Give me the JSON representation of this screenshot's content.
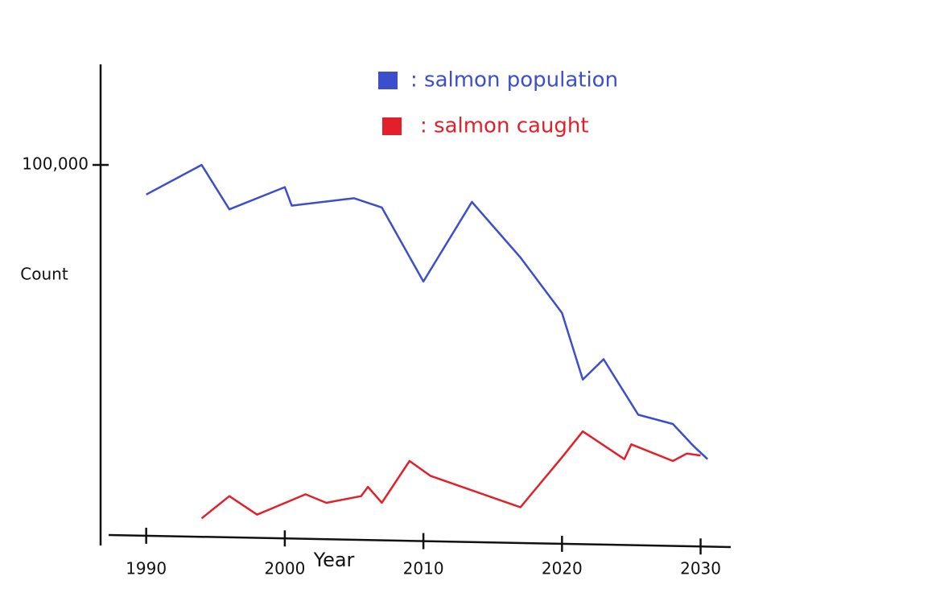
{
  "chart_data": {
    "type": "line",
    "x_label": "Year",
    "y_label": "Count",
    "xlim": [
      1987,
      2032
    ],
    "xticks": [
      1990,
      2000,
      2010,
      2020,
      2030
    ],
    "ylim": [
      0,
      125000
    ],
    "yticks": [
      {
        "value": 100000,
        "label": "100,000"
      }
    ],
    "series": [
      {
        "name": ": salmon population",
        "color": "#3b4fcc",
        "x": [
          1990,
          1994,
          1996,
          2000,
          2000.5,
          2005,
          2007,
          2010,
          2013.5,
          2017,
          2020,
          2021.5,
          2023,
          2025.5,
          2028,
          2029.5,
          2030.5
        ],
        "values": [
          92000,
          100000,
          88000,
          94000,
          89000,
          91000,
          88500,
          68500,
          90000,
          75000,
          60000,
          42000,
          47500,
          32500,
          30000,
          24000,
          20500
        ]
      },
      {
        "name": ": salmon caught",
        "color": "#e3202a",
        "x": [
          1994,
          1996,
          1998,
          2001.5,
          2003,
          2005.5,
          2006,
          2007,
          2009,
          2010.5,
          2017,
          2020,
          2021.5,
          2024.5,
          2025,
          2028,
          2029,
          2030
        ],
        "values": [
          4500,
          10500,
          5500,
          11000,
          8700,
          10500,
          13000,
          8700,
          20000,
          16000,
          7500,
          21000,
          28000,
          20500,
          24500,
          20000,
          22000,
          21500
        ]
      }
    ]
  }
}
